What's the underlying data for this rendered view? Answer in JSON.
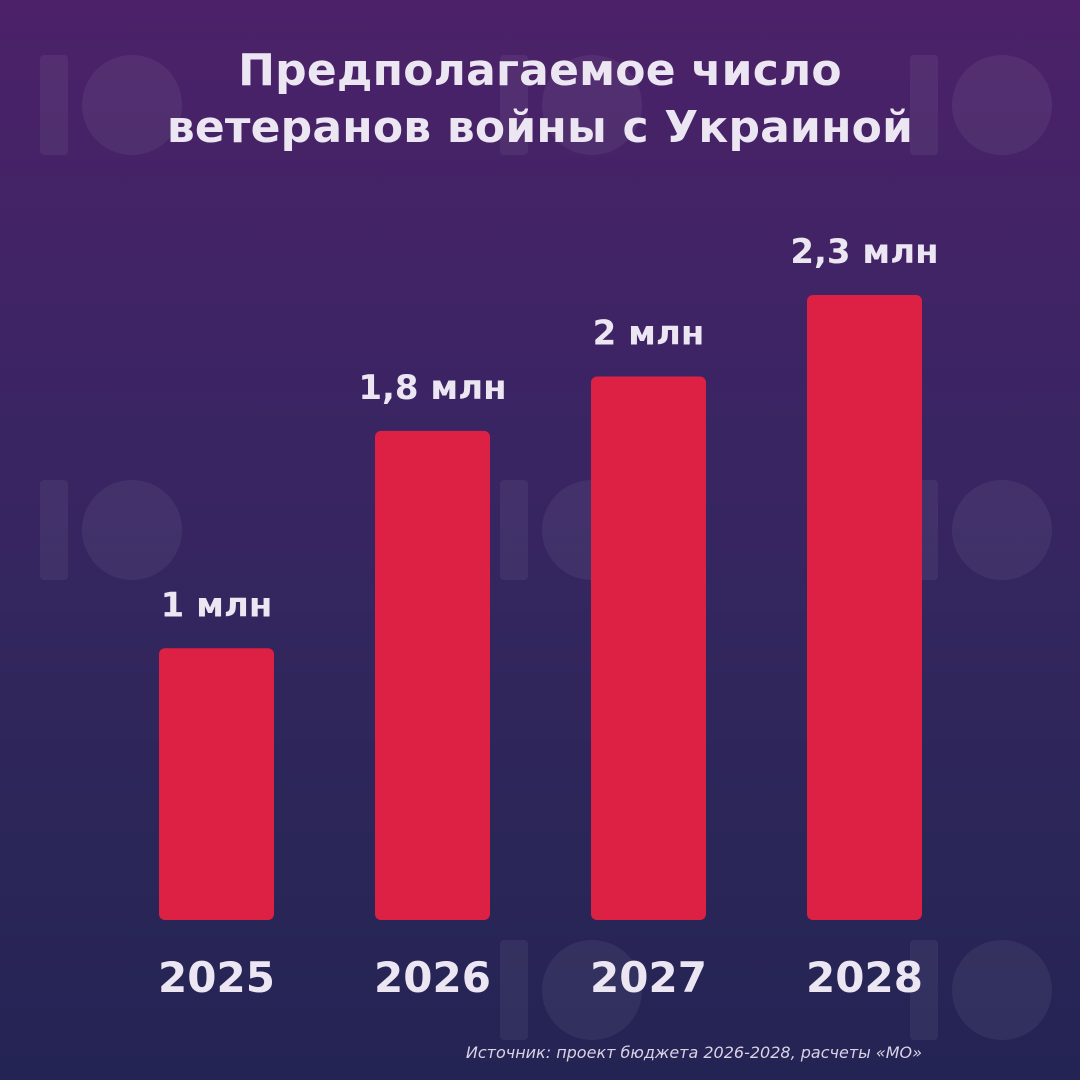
{
  "title": {
    "line1": "Предполагаемое число",
    "line2": "ветеранов войны с Украиной"
  },
  "source": "Источник: проект бюджета 2026-2028, расчеты «МО»",
  "colors": {
    "bar": "#dc2144",
    "text": "#ece6f2",
    "background_top": "#4c2169",
    "background_bottom": "#242454"
  },
  "watermark_icon": "10-logo-icon",
  "chart_data": {
    "type": "bar",
    "title": "Предполагаемое число ветеранов войны с Украиной",
    "categories": [
      "2025",
      "2026",
      "2027",
      "2028"
    ],
    "values": [
      1.0,
      1.8,
      2.0,
      2.3
    ],
    "value_labels": [
      "1 млн",
      "1,8 млн",
      "2 млн",
      "2,3 млн"
    ],
    "unit": "млн",
    "ylim": [
      0,
      2.3
    ],
    "grid": false,
    "legend": "none"
  }
}
